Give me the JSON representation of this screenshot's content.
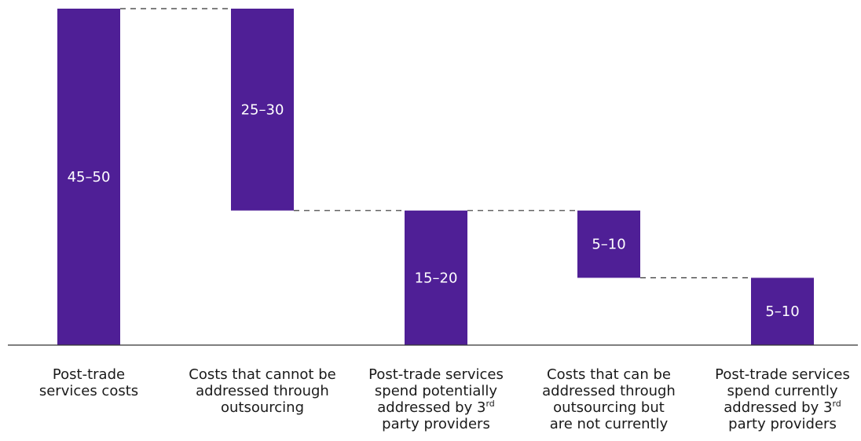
{
  "chart_data": {
    "type": "waterfall",
    "colors": {
      "bar": "#4F1F96",
      "connector": "#333333",
      "axis": "#333333"
    },
    "ylim": [
      0,
      50
    ],
    "categories": [
      {
        "lines": [
          "Post-trade",
          "services costs"
        ]
      },
      {
        "lines": [
          "Costs that cannot be",
          "addressed through",
          "outsourcing"
        ]
      },
      {
        "lines": [
          "Post-trade services",
          "spend potentially",
          "addressed by 3",
          "party providers"
        ],
        "sup": {
          "line": 2,
          "text": "rd"
        }
      },
      {
        "lines": [
          "Costs that can be",
          "addressed through",
          "outsourcing but",
          "are not currently"
        ]
      },
      {
        "lines": [
          "Post-trade services",
          "spend currently",
          "addressed by 3",
          "party providers"
        ],
        "sup": {
          "line": 2,
          "text": "rd"
        }
      }
    ],
    "bars": [
      {
        "label": "45–50",
        "base": 0,
        "top": 50,
        "kind": "total"
      },
      {
        "label": "25–30",
        "base": 20,
        "top": 50,
        "kind": "decrease"
      },
      {
        "label": "15–20",
        "base": 0,
        "top": 20,
        "kind": "subtotal"
      },
      {
        "label": "5–10",
        "base": 10,
        "top": 20,
        "kind": "decrease"
      },
      {
        "label": "5–10",
        "base": 0,
        "top": 10,
        "kind": "total"
      }
    ]
  }
}
